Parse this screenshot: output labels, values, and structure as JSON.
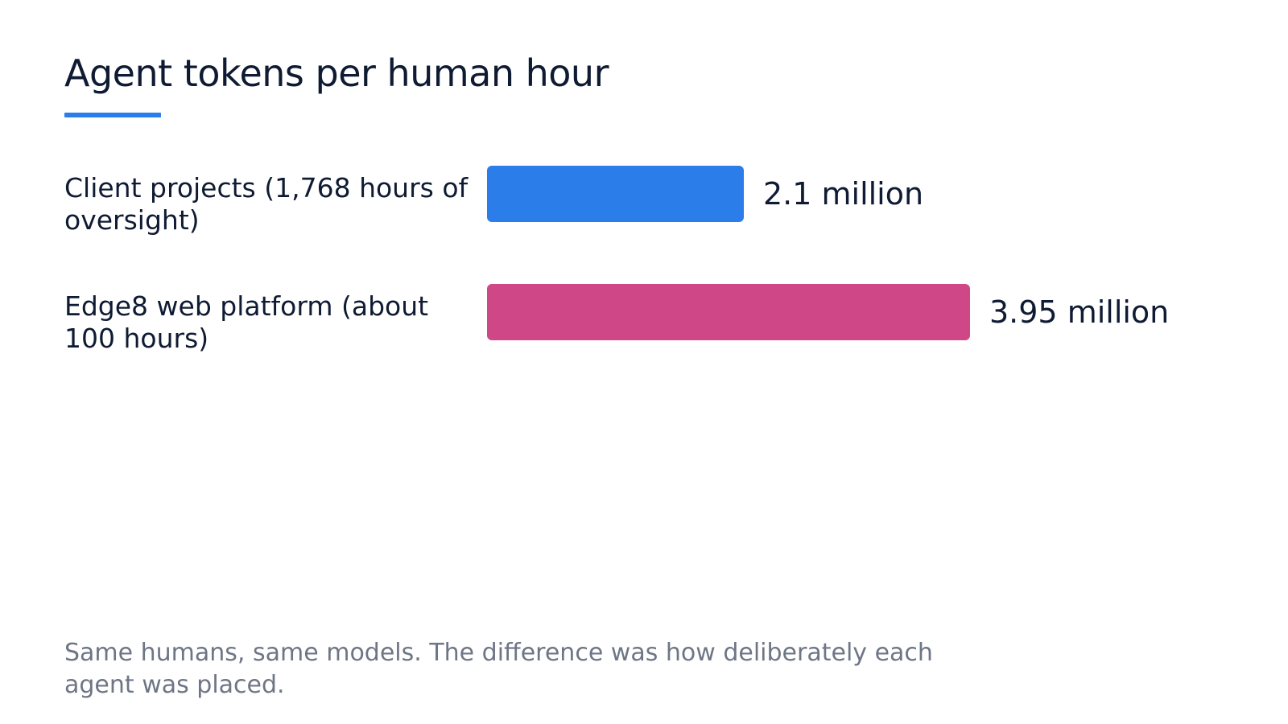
{
  "title": "Agent tokens per human hour",
  "colors": {
    "accent": "#2b7de9",
    "series_1": "#2b7de9",
    "series_2": "#d04788",
    "text": "#0f1b33",
    "footnote": "#6e7685"
  },
  "chart_data": {
    "type": "bar",
    "orientation": "horizontal",
    "title": "Agent tokens per human hour",
    "categories": [
      "Client projects (1,768 hours of oversight)",
      "Edge8 web platform (about 100 hours)"
    ],
    "values": [
      2.1,
      3.95
    ],
    "value_labels": [
      "2.1 million",
      "3.95 million"
    ],
    "unit": "million",
    "colors": [
      "#2b7de9",
      "#d04788"
    ],
    "xlabel": "",
    "ylabel": "",
    "grid": false,
    "legend": "none"
  },
  "footnote": "Same humans, same models. The difference was how deliberately each agent was placed."
}
